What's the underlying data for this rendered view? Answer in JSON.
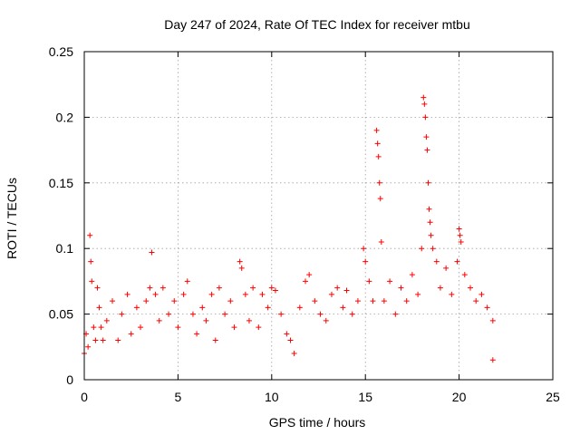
{
  "chart_data": {
    "type": "scatter",
    "title": "Day 247 of 2024, Rate Of TEC Index for receiver mtbu",
    "xlabel": "GPS time / hours",
    "ylabel": "ROTI / TECUs",
    "xlim": [
      0,
      25
    ],
    "ylim": [
      0,
      0.25
    ],
    "x_ticks": [
      0,
      5,
      10,
      15,
      20,
      25
    ],
    "x_tick_labels": [
      "0",
      "5",
      "10",
      "15",
      "20",
      "25"
    ],
    "y_ticks": [
      0,
      0.05,
      0.1,
      0.15,
      0.2,
      0.25
    ],
    "y_tick_labels": [
      "0",
      "0.05",
      "0.1",
      "0.15",
      "0.2",
      "0.25"
    ],
    "grid": true,
    "legend": "none",
    "marker": "+",
    "color": "#ff0000",
    "series": [
      {
        "points": [
          [
            0.0,
            0.02
          ],
          [
            0.1,
            0.035
          ],
          [
            0.2,
            0.025
          ],
          [
            0.3,
            0.11
          ],
          [
            0.35,
            0.09
          ],
          [
            0.4,
            0.075
          ],
          [
            0.5,
            0.04
          ],
          [
            0.6,
            0.03
          ],
          [
            0.7,
            0.07
          ],
          [
            0.8,
            0.055
          ],
          [
            0.9,
            0.04
          ],
          [
            1.0,
            0.03
          ],
          [
            1.2,
            0.045
          ],
          [
            1.5,
            0.06
          ],
          [
            1.8,
            0.03
          ],
          [
            2.0,
            0.05
          ],
          [
            2.3,
            0.065
          ],
          [
            2.5,
            0.035
          ],
          [
            2.8,
            0.055
          ],
          [
            3.0,
            0.04
          ],
          [
            3.3,
            0.06
          ],
          [
            3.5,
            0.07
          ],
          [
            3.6,
            0.097
          ],
          [
            3.8,
            0.065
          ],
          [
            4.0,
            0.045
          ],
          [
            4.2,
            0.07
          ],
          [
            4.5,
            0.05
          ],
          [
            4.8,
            0.06
          ],
          [
            5.0,
            0.04
          ],
          [
            5.3,
            0.065
          ],
          [
            5.5,
            0.075
          ],
          [
            5.8,
            0.05
          ],
          [
            6.0,
            0.035
          ],
          [
            6.3,
            0.055
          ],
          [
            6.5,
            0.045
          ],
          [
            6.8,
            0.065
          ],
          [
            7.0,
            0.03
          ],
          [
            7.2,
            0.07
          ],
          [
            7.5,
            0.05
          ],
          [
            7.8,
            0.06
          ],
          [
            8.0,
            0.04
          ],
          [
            8.3,
            0.09
          ],
          [
            8.4,
            0.085
          ],
          [
            8.6,
            0.065
          ],
          [
            8.8,
            0.045
          ],
          [
            9.0,
            0.07
          ],
          [
            9.3,
            0.04
          ],
          [
            9.5,
            0.065
          ],
          [
            9.8,
            0.055
          ],
          [
            10.0,
            0.07
          ],
          [
            10.2,
            0.068
          ],
          [
            10.5,
            0.05
          ],
          [
            10.8,
            0.035
          ],
          [
            11.0,
            0.03
          ],
          [
            11.2,
            0.02
          ],
          [
            11.5,
            0.055
          ],
          [
            11.8,
            0.075
          ],
          [
            12.0,
            0.08
          ],
          [
            12.3,
            0.06
          ],
          [
            12.6,
            0.05
          ],
          [
            12.9,
            0.045
          ],
          [
            13.2,
            0.065
          ],
          [
            13.5,
            0.07
          ],
          [
            13.8,
            0.055
          ],
          [
            14.0,
            0.068
          ],
          [
            14.3,
            0.05
          ],
          [
            14.6,
            0.06
          ],
          [
            14.9,
            0.1
          ],
          [
            15.0,
            0.09
          ],
          [
            15.2,
            0.075
          ],
          [
            15.4,
            0.06
          ],
          [
            15.6,
            0.19
          ],
          [
            15.65,
            0.18
          ],
          [
            15.7,
            0.17
          ],
          [
            15.75,
            0.15
          ],
          [
            15.8,
            0.138
          ],
          [
            15.85,
            0.105
          ],
          [
            16.0,
            0.06
          ],
          [
            16.3,
            0.075
          ],
          [
            16.6,
            0.05
          ],
          [
            16.9,
            0.07
          ],
          [
            17.2,
            0.06
          ],
          [
            17.5,
            0.08
          ],
          [
            17.8,
            0.065
          ],
          [
            18.0,
            0.1
          ],
          [
            18.1,
            0.215
          ],
          [
            18.15,
            0.21
          ],
          [
            18.2,
            0.2
          ],
          [
            18.25,
            0.185
          ],
          [
            18.3,
            0.175
          ],
          [
            18.35,
            0.15
          ],
          [
            18.4,
            0.13
          ],
          [
            18.45,
            0.12
          ],
          [
            18.5,
            0.11
          ],
          [
            18.6,
            0.1
          ],
          [
            18.8,
            0.09
          ],
          [
            19.0,
            0.07
          ],
          [
            19.3,
            0.085
          ],
          [
            19.6,
            0.065
          ],
          [
            19.9,
            0.09
          ],
          [
            20.0,
            0.115
          ],
          [
            20.05,
            0.11
          ],
          [
            20.1,
            0.105
          ],
          [
            20.3,
            0.08
          ],
          [
            20.6,
            0.07
          ],
          [
            20.9,
            0.06
          ],
          [
            21.2,
            0.065
          ],
          [
            21.5,
            0.055
          ],
          [
            21.8,
            0.045
          ],
          [
            21.8,
            0.015
          ]
        ]
      }
    ]
  }
}
